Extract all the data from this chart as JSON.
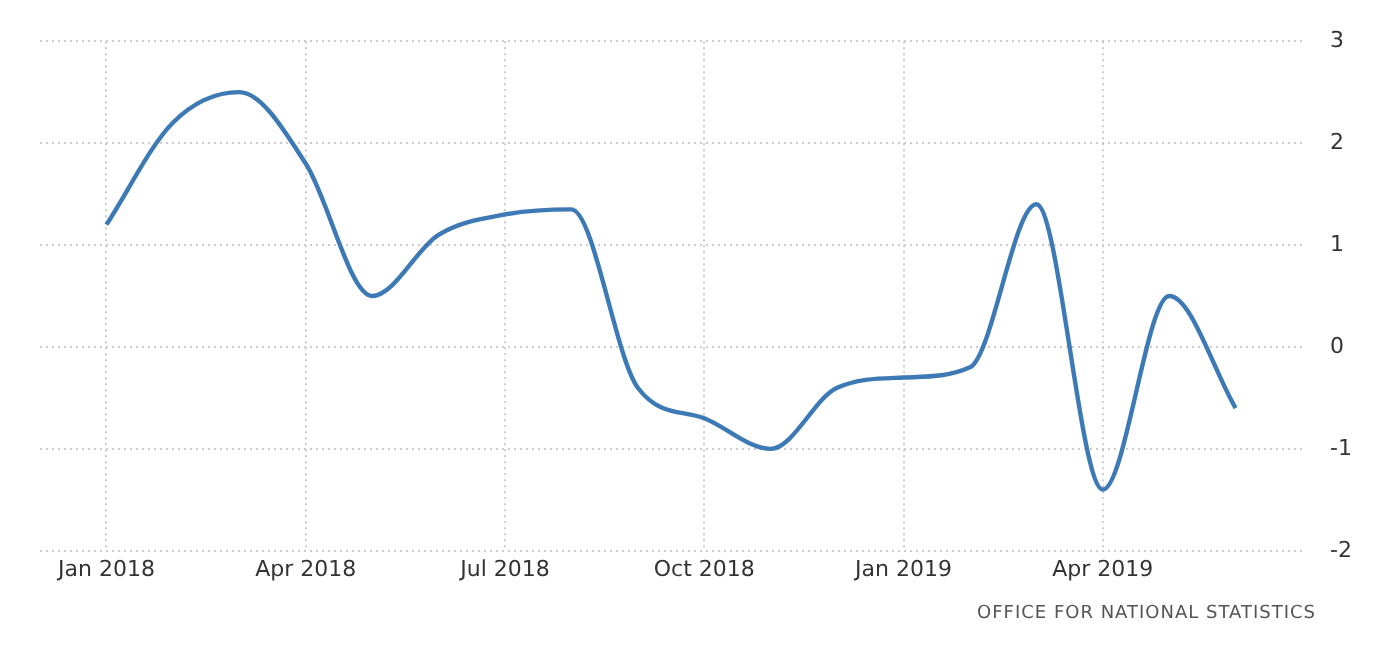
{
  "chart_data": {
    "type": "line",
    "x": [
      "2018-01",
      "2018-02",
      "2018-03",
      "2018-04",
      "2018-05",
      "2018-06",
      "2018-07",
      "2018-08",
      "2018-09",
      "2018-10",
      "2018-11",
      "2018-12",
      "2019-01",
      "2019-02",
      "2019-03",
      "2019-04",
      "2019-05",
      "2019-06"
    ],
    "series": [
      {
        "color": "#3d7ab5",
        "values": [
          1.2,
          2.2,
          2.5,
          1.8,
          0.5,
          1.1,
          1.3,
          1.35,
          -0.4,
          -0.7,
          -1.0,
          -0.4,
          -0.3,
          -0.2,
          1.4,
          -1.4,
          0.5,
          -0.6
        ]
      }
    ],
    "xlim": [
      "2017-12",
      "2019-07"
    ],
    "xticks": [
      {
        "value": "2018-01",
        "label": "Jan 2018"
      },
      {
        "value": "2018-04",
        "label": "Apr 2018"
      },
      {
        "value": "2018-07",
        "label": "Jul 2018"
      },
      {
        "value": "2018-10",
        "label": "Oct 2018"
      },
      {
        "value": "2019-01",
        "label": "Jan 2019"
      },
      {
        "value": "2019-04",
        "label": "Apr 2019"
      }
    ],
    "ylim": [
      -2,
      3
    ],
    "yticks": [
      -2,
      -1,
      0,
      1,
      2,
      3
    ],
    "grid": true,
    "legend": false,
    "marker": "none",
    "line_style": "solid",
    "annotations": [
      "OFFICE FOR NATIONAL STATISTICS"
    ]
  }
}
